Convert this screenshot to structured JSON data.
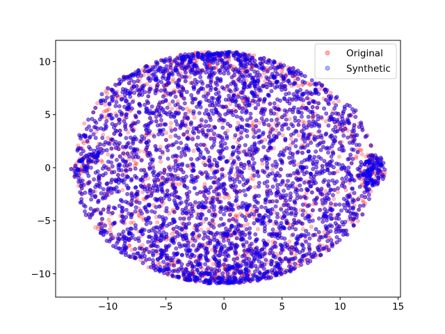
{
  "chart_data": {
    "type": "scatter",
    "title": "",
    "xlabel": "",
    "ylabel": "",
    "xlim": [
      -14.5,
      15.2
    ],
    "ylim": [
      -12.2,
      12.0
    ],
    "xticks": [
      -10,
      -5,
      0,
      5,
      10,
      15
    ],
    "yticks": [
      -10,
      -5,
      0,
      5,
      10
    ],
    "xtick_labels": [
      "−10",
      "−5",
      "0",
      "5",
      "10",
      "15"
    ],
    "ytick_labels": [
      "−10",
      "−5",
      "0",
      "5",
      "10"
    ],
    "grid": false,
    "legend_position": "upper-right",
    "cloud": {
      "description_of_extent": "dense t-SNE style point cloud",
      "x_range": [
        -13.5,
        13.8
      ],
      "y_range": [
        -10.8,
        10.9
      ],
      "left_tip": [
        -13.3,
        -0.6
      ],
      "right_lobe_center": [
        12.8,
        -0.2
      ]
    },
    "series": [
      {
        "name": "Original",
        "color": "#ff0000",
        "alpha": 0.25,
        "marker": "circle",
        "count": 5000
      },
      {
        "name": "Synthetic",
        "color": "#0000ff",
        "alpha": 0.25,
        "marker": "circle",
        "count": 7000
      }
    ]
  }
}
